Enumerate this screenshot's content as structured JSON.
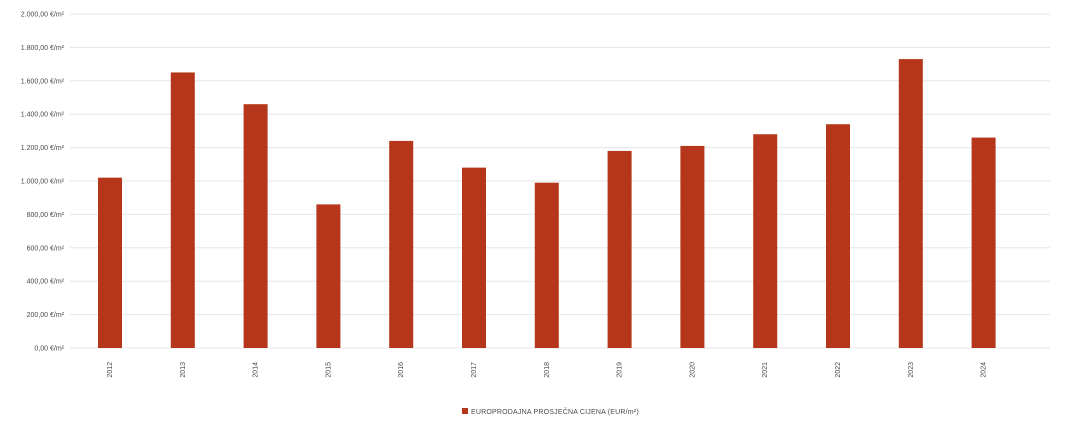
{
  "chart_data": {
    "type": "bar",
    "categories": [
      "2012",
      "2013",
      "2014",
      "2015",
      "2016",
      "2017",
      "2018",
      "2019",
      "2020",
      "2021",
      "2022",
      "2023",
      "2024"
    ],
    "series": [
      {
        "name": "EUROPRODAJNA PROSJEČNA CIJENA (EUR/m²)",
        "color": "#b5361a",
        "values": [
          1020,
          1650,
          1460,
          860,
          1240,
          1080,
          990,
          1180,
          1210,
          1280,
          1340,
          1730,
          1260
        ]
      }
    ],
    "y_ticks": [
      {
        "value": 0,
        "label": "0,00 €/m²"
      },
      {
        "value": 200,
        "label": "200,00 €/m²"
      },
      {
        "value": 400,
        "label": "400,00 €/m²"
      },
      {
        "value": 600,
        "label": "600,00 €/m²"
      },
      {
        "value": 800,
        "label": "800,00 €/m²"
      },
      {
        "value": 1000,
        "label": "1.000,00 €/m²"
      },
      {
        "value": 1200,
        "label": "1.200,00 €/m²"
      },
      {
        "value": 1400,
        "label": "1.400,00 €/m²"
      },
      {
        "value": 1600,
        "label": "1.600,00 €/m²"
      },
      {
        "value": 1800,
        "label": "1.800,00 €/m²"
      },
      {
        "value": 2000,
        "label": "2.000,00 €/m²"
      }
    ],
    "ylim": [
      0,
      2000
    ],
    "grid": true,
    "legend_position": "bottom-center",
    "title": "",
    "xlabel": "",
    "ylabel": ""
  }
}
